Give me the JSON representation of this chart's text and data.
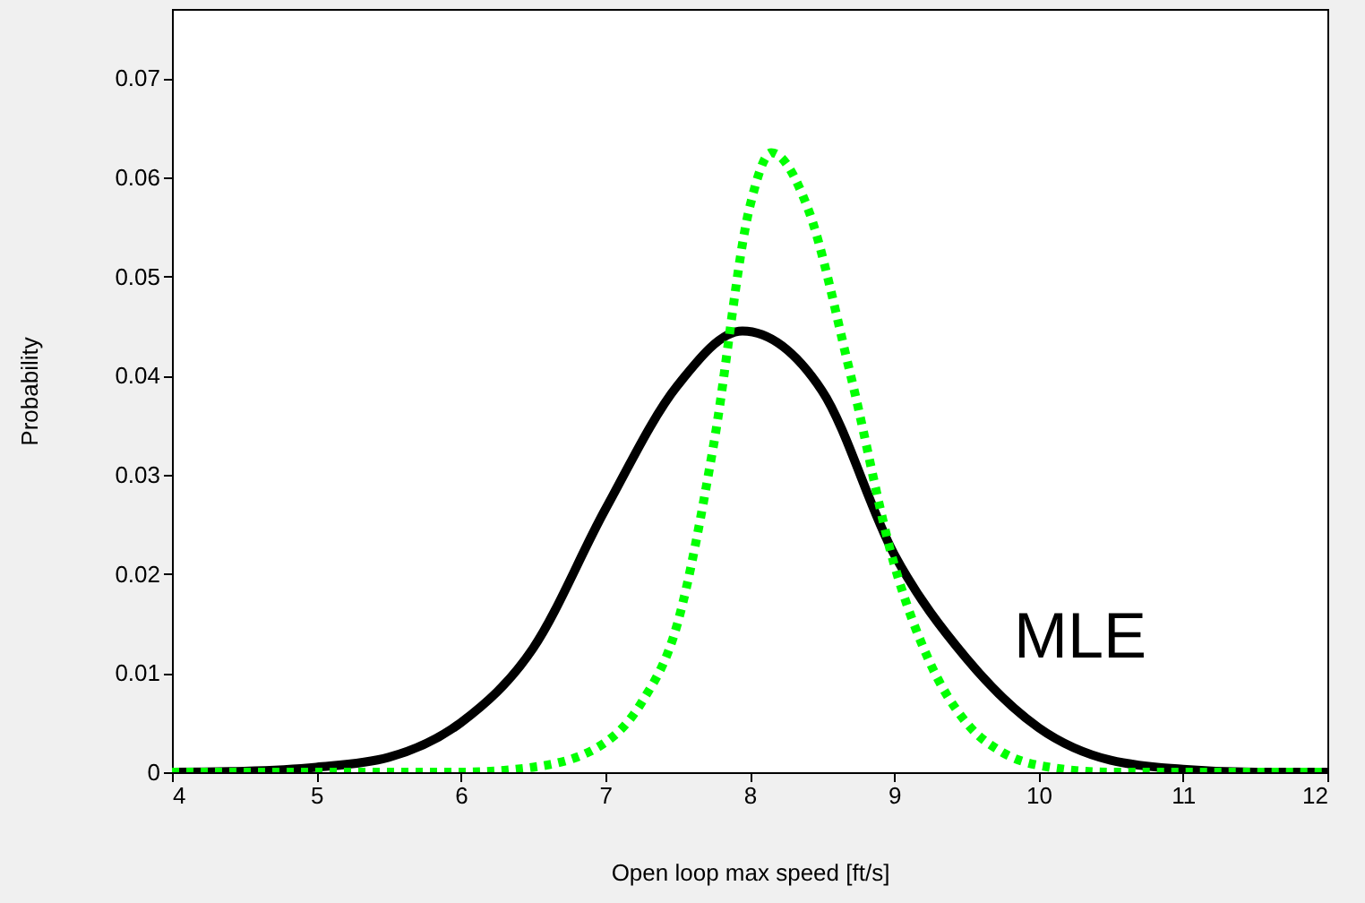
{
  "chart_data": {
    "type": "line",
    "xlabel": "Open loop max speed [ft/s]",
    "ylabel": "Probability",
    "xlim": [
      4,
      12
    ],
    "xticks": [
      4,
      5,
      6,
      7,
      8,
      9,
      10,
      11,
      12
    ],
    "ylim": [
      0,
      0.077
    ],
    "yticks": [
      0,
      0.01,
      0.02,
      0.03,
      0.04,
      0.05,
      0.06,
      0.07
    ],
    "series": [
      {
        "color": "#000000",
        "line_style": "solid",
        "x": [
          4,
          4.5,
          5,
          5.5,
          6,
          6.5,
          7,
          7.5,
          7.95,
          8.5,
          9,
          9.5,
          10,
          10.5,
          11,
          11.5,
          12
        ],
        "values": [
          0,
          0.0001,
          0.0005,
          0.0015,
          0.005,
          0.0125,
          0.0265,
          0.039,
          0.0445,
          0.0385,
          0.022,
          0.0115,
          0.0045,
          0.0012,
          0.0003,
          0,
          0
        ]
      },
      {
        "color": "#00ff00",
        "line_style": "dotted",
        "x": [
          4,
          5,
          6,
          6.5,
          7,
          7.25,
          7.5,
          7.75,
          8,
          8.15,
          8.4,
          8.7,
          9,
          9.25,
          9.5,
          9.75,
          10,
          10.5,
          11,
          12
        ],
        "values": [
          0,
          0,
          0,
          0.0005,
          0.003,
          0.007,
          0.015,
          0.033,
          0.057,
          0.0625,
          0.057,
          0.04,
          0.021,
          0.011,
          0.005,
          0.002,
          0.0007,
          0,
          0,
          0
        ]
      }
    ],
    "annotations": [
      "MLE"
    ]
  }
}
